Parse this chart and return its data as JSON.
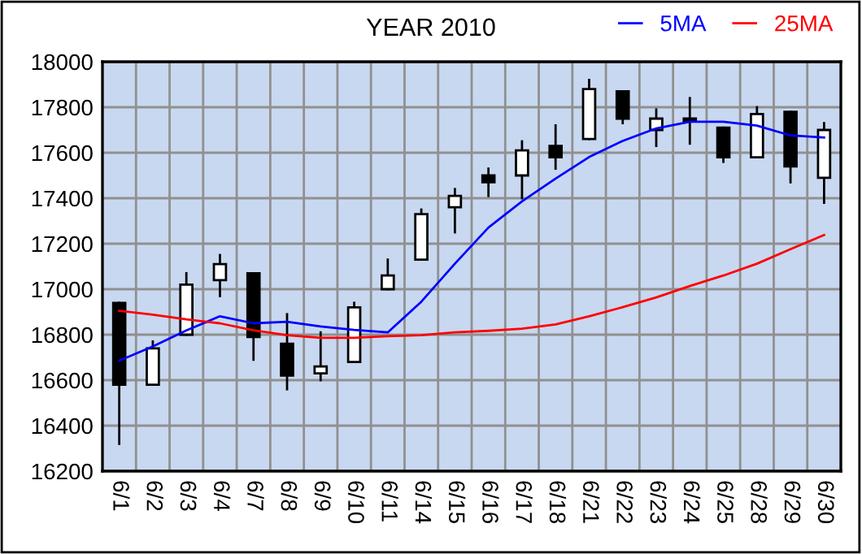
{
  "chart_data": {
    "type": "candlestick",
    "title": "YEAR 2010",
    "categories": [
      "6/1",
      "6/2",
      "6/3",
      "6/4",
      "6/7",
      "6/8",
      "6/9",
      "6/10",
      "6/11",
      "6/14",
      "6/15",
      "6/16",
      "6/17",
      "6/18",
      "6/21",
      "6/22",
      "6/23",
      "6/24",
      "6/25",
      "6/28",
      "6/29",
      "6/30"
    ],
    "ohlc": [
      [
        16940,
        16940,
        16320,
        16580
      ],
      [
        16580,
        16770,
        16580,
        16740
      ],
      [
        16800,
        17070,
        16800,
        17020
      ],
      [
        17040,
        17150,
        16970,
        17110
      ],
      [
        17070,
        17070,
        16690,
        16790
      ],
      [
        16760,
        16890,
        16560,
        16620
      ],
      [
        16630,
        16810,
        16600,
        16660
      ],
      [
        16680,
        16940,
        16680,
        16920
      ],
      [
        17000,
        17130,
        17000,
        17060
      ],
      [
        17130,
        17350,
        17130,
        17330
      ],
      [
        17360,
        17440,
        17250,
        17410
      ],
      [
        17500,
        17530,
        17410,
        17470
      ],
      [
        17500,
        17650,
        17400,
        17610
      ],
      [
        17630,
        17720,
        17530,
        17580
      ],
      [
        17660,
        17920,
        17660,
        17880
      ],
      [
        17870,
        17870,
        17730,
        17750
      ],
      [
        17700,
        17790,
        17630,
        17750
      ],
      [
        17750,
        17840,
        17640,
        17740
      ],
      [
        17710,
        17710,
        17560,
        17580
      ],
      [
        17580,
        17800,
        17580,
        17770
      ],
      [
        17780,
        17780,
        17470,
        17540
      ],
      [
        17490,
        17730,
        17380,
        17700
      ]
    ],
    "series": [
      {
        "name": "5MA",
        "type": "line",
        "color": "#0000ff",
        "values": [
          16686,
          16748,
          16819,
          16881,
          16850,
          16857,
          16836,
          16821,
          16810,
          16945,
          17112,
          17271,
          17386,
          17486,
          17581,
          17652,
          17707,
          17736,
          17736,
          17719,
          17676,
          17667
        ]
      },
      {
        "name": "25MA",
        "type": "line",
        "color": "#ff0000",
        "values": [
          16905,
          16888,
          16867,
          16850,
          16819,
          16798,
          16786,
          16786,
          16793,
          16798,
          16810,
          16817,
          16826,
          16845,
          16881,
          16921,
          16964,
          17014,
          17060,
          17112,
          17176,
          17238
        ]
      }
    ],
    "ylim": [
      16200,
      18000
    ],
    "yticks": [
      16200,
      16400,
      16600,
      16800,
      17000,
      17200,
      17400,
      17600,
      17800,
      18000
    ],
    "grid": true,
    "legend": "top right"
  }
}
